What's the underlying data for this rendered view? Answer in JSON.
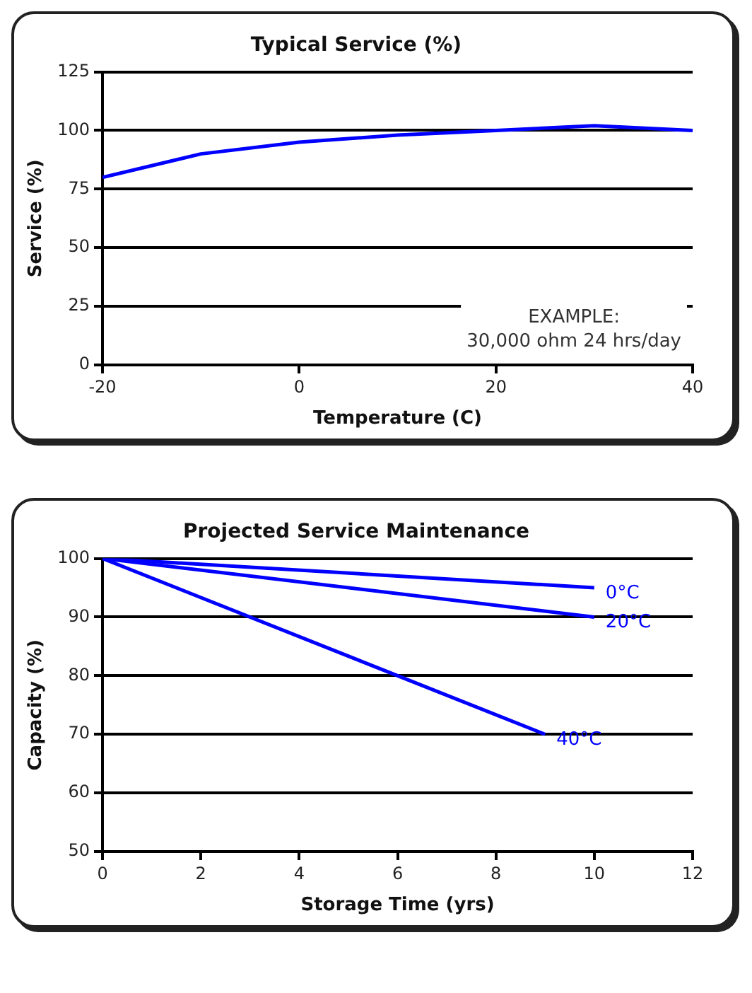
{
  "chart_data": [
    {
      "type": "line",
      "title": "Typical Service (%)",
      "xlabel": "Temperature (C)",
      "ylabel": "Service (%)",
      "x": [
        -20,
        -10,
        0,
        10,
        20,
        30,
        40
      ],
      "series": [
        {
          "color": "#0000ff",
          "values": [
            80,
            90,
            95,
            98,
            100,
            102,
            100
          ]
        }
      ],
      "xlim": [
        -20,
        40
      ],
      "xticks": [
        -20,
        0,
        20,
        40
      ],
      "ylim": [
        0,
        125
      ],
      "yticks": [
        0,
        25,
        50,
        75,
        100,
        125
      ],
      "grid": "y",
      "legend": false,
      "annotations": [
        "EXAMPLE:\n30,000 ohm 24 hrs/day"
      ]
    },
    {
      "type": "line",
      "title": "Projected Service Maintenance",
      "xlabel": "Storage Time (yrs)",
      "ylabel": "Capacity (%)",
      "series": [
        {
          "name": "0°C",
          "color": "#0000ff",
          "x": [
            0,
            10
          ],
          "values": [
            100,
            95
          ]
        },
        {
          "name": "20°C",
          "color": "#0000ff",
          "x": [
            0,
            10
          ],
          "values": [
            100,
            90
          ]
        },
        {
          "name": "40°C",
          "color": "#0000ff",
          "x": [
            0,
            9
          ],
          "values": [
            100,
            70
          ]
        }
      ],
      "xlim": [
        0,
        12
      ],
      "xticks": [
        0,
        2,
        4,
        6,
        8,
        10,
        12
      ],
      "ylim": [
        50,
        100
      ],
      "yticks": [
        50,
        60,
        70,
        80,
        90,
        100
      ],
      "grid": "y",
      "legend": false
    }
  ]
}
